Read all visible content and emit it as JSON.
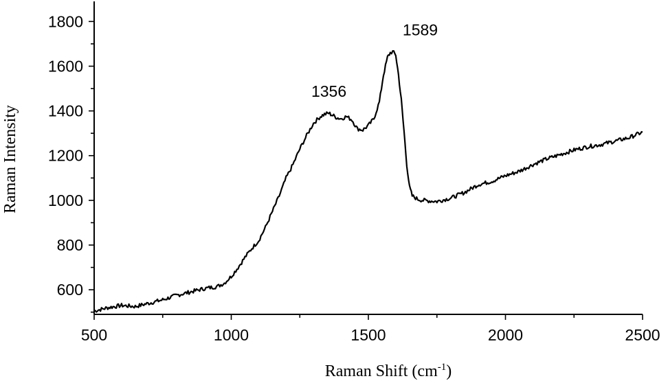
{
  "chart_data": {
    "type": "line",
    "xlabel": "Raman Shift (cm",
    "xlabel_sup": "-1",
    "xlabel_end": ")",
    "ylabel": "Raman Intensity",
    "xlim": [
      500,
      2500
    ],
    "ylim": [
      490,
      1890
    ],
    "x_ticks": [
      500,
      1000,
      1500,
      2000,
      2500
    ],
    "x_tick_labels": [
      "500",
      "1000",
      "1500",
      "2000",
      "2500"
    ],
    "y_ticks": [
      600,
      800,
      1000,
      1200,
      1400,
      1600,
      1800
    ],
    "y_tick_labels": [
      "600",
      "800",
      "1000",
      "1200",
      "1400",
      "1600",
      "1800"
    ],
    "grid": false,
    "annotations": [
      {
        "text": "1356",
        "x": 1356,
        "y": 1390
      },
      {
        "text": "1589",
        "x": 1589,
        "y": 1665
      }
    ],
    "series": [
      {
        "x": [
          500,
          550,
          600,
          650,
          700,
          750,
          800,
          850,
          900,
          950,
          975,
          1000,
          1025,
          1050,
          1075,
          1100,
          1125,
          1150,
          1175,
          1200,
          1225,
          1250,
          1275,
          1300,
          1325,
          1340,
          1356,
          1370,
          1385,
          1400,
          1420,
          1440,
          1460,
          1480,
          1500,
          1520,
          1540,
          1555,
          1570,
          1580,
          1589,
          1600,
          1610,
          1620,
          1630,
          1640,
          1650,
          1660,
          1680,
          1700,
          1750,
          1800,
          1850,
          1900,
          1950,
          2000,
          2050,
          2100,
          2150,
          2200,
          2250,
          2300,
          2350,
          2400,
          2450,
          2500
        ],
        "y": [
          505,
          520,
          530,
          525,
          540,
          555,
          575,
          590,
          605,
          615,
          630,
          660,
          700,
          745,
          785,
          820,
          880,
          950,
          1020,
          1100,
          1160,
          1230,
          1290,
          1345,
          1375,
          1385,
          1390,
          1380,
          1370,
          1365,
          1375,
          1360,
          1320,
          1315,
          1335,
          1365,
          1440,
          1560,
          1640,
          1660,
          1665,
          1650,
          1560,
          1450,
          1310,
          1160,
          1060,
          1020,
          1005,
          1000,
          995,
          1010,
          1035,
          1070,
          1085,
          1110,
          1130,
          1160,
          1185,
          1205,
          1225,
          1240,
          1250,
          1265,
          1280,
          1305
        ]
      }
    ]
  }
}
